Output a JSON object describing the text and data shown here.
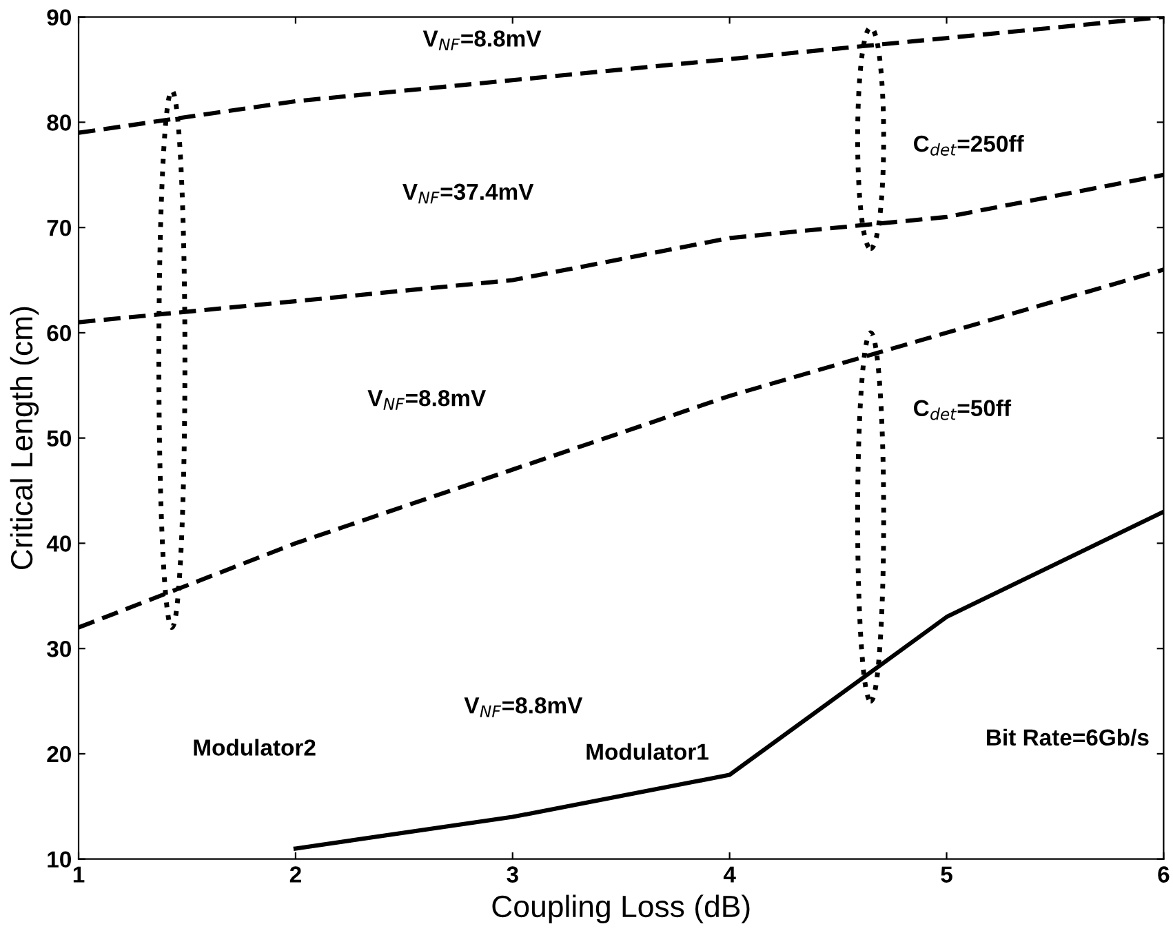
{
  "chart_data": {
    "type": "line",
    "xlabel": "Coupling Loss (dB)",
    "ylabel": "Critical Length (cm)",
    "x": [
      1,
      2,
      3,
      4,
      5,
      6
    ],
    "series": [
      {
        "color": "#000000",
        "line_style": "dashed",
        "values": [
          79,
          82,
          84,
          86,
          88,
          90
        ]
      },
      {
        "color": "#000000",
        "line_style": "dashed",
        "values": [
          61,
          63,
          65,
          69,
          71,
          75
        ]
      },
      {
        "color": "#000000",
        "line_style": "dashed",
        "values": [
          32,
          40,
          47,
          54,
          60,
          66
        ]
      },
      {
        "color": "#000000",
        "line_style": "solid",
        "values": [
          null,
          11,
          14,
          18,
          33,
          43
        ]
      }
    ],
    "xlim": [
      1,
      6
    ],
    "ylim": [
      10,
      90
    ],
    "xticks": [
      1,
      2,
      3,
      4,
      5,
      6
    ],
    "yticks": [
      10,
      20,
      30,
      40,
      50,
      60,
      70,
      80,
      90
    ],
    "grid": false,
    "legend": false,
    "marker": "none",
    "annotations": [
      "V$_{NF}$=8.8mV",
      "V$_{NF}$=37.4mV",
      "V$_{NF}$=8.8mV",
      "V$_{NF}$=8.8mV",
      "C$_{det}$=250ff",
      "C$_{det}$=50ff",
      "Modulator2",
      "Modulator1",
      "Bit Rate=6Gb/s"
    ]
  }
}
